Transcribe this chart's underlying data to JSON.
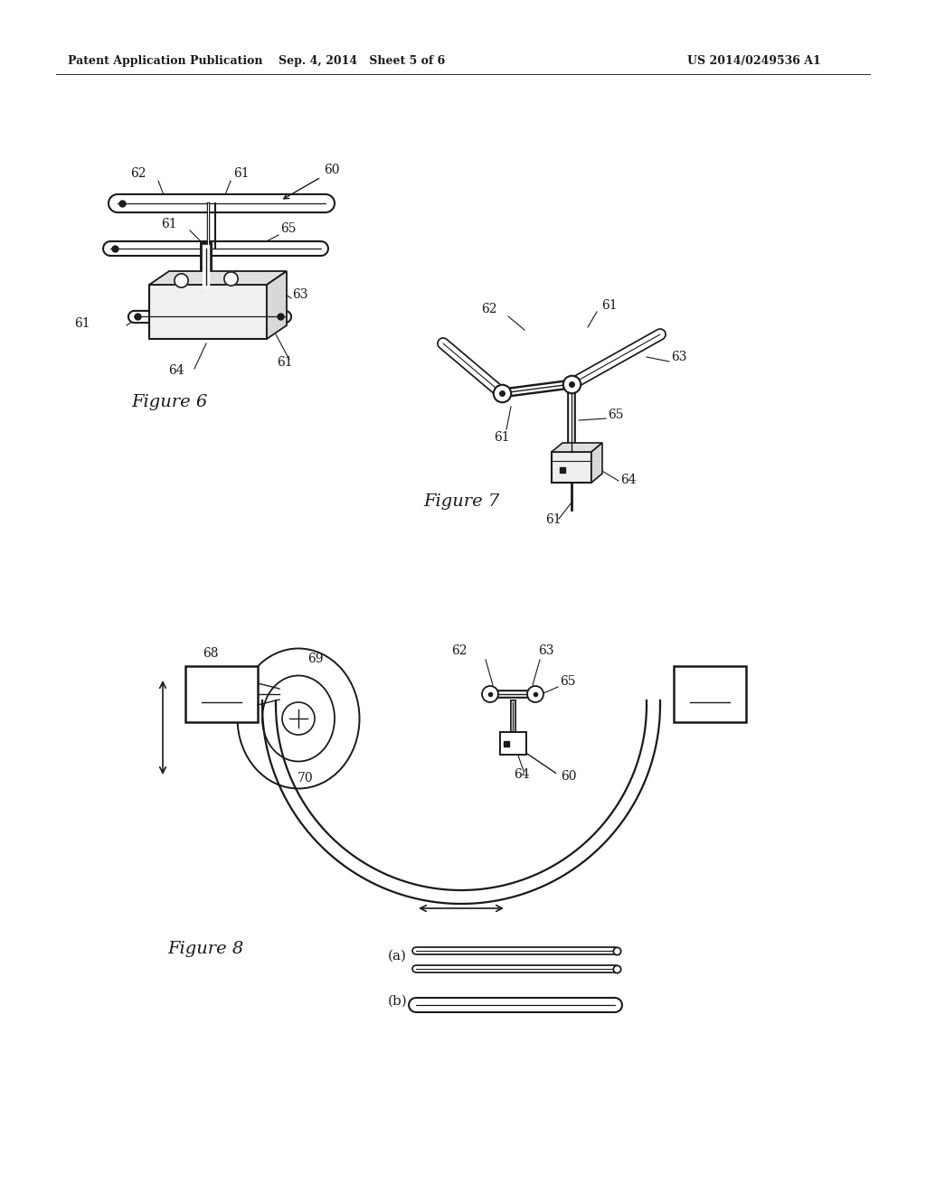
{
  "bg_color": "#ffffff",
  "header_left": "Patent Application Publication",
  "header_mid": "Sep. 4, 2014   Sheet 5 of 6",
  "header_right": "US 2014/0249536 A1",
  "fig6_label": "Figure 6",
  "fig7_label": "Figure 7",
  "fig8_label": "Figure 8",
  "label_a": "(a)",
  "label_b": "(b)"
}
